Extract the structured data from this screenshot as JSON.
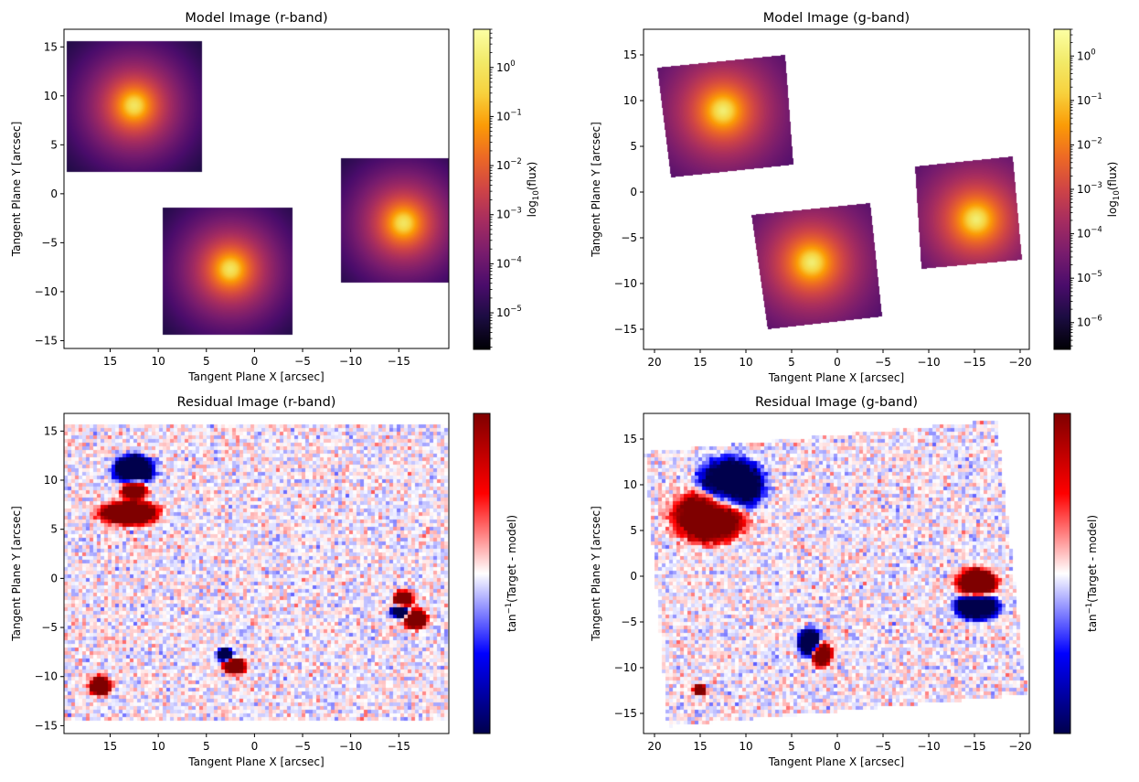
{
  "chart_data": [
    {
      "type": "heatmap",
      "title": "Model Image (r-band)",
      "xlabel": "Tangent Plane X [arcsec]",
      "ylabel": "Tangent Plane Y [arcsec]",
      "xlim": [
        19.8,
        -20.2
      ],
      "ylim": [
        -15.8,
        16.8
      ],
      "x_reversed": true,
      "xticks": [
        15,
        10,
        5,
        0,
        -5,
        -10,
        -15
      ],
      "yticks": [
        -15,
        -10,
        -5,
        0,
        5,
        10,
        15
      ],
      "colormap": "inferno",
      "colorbar": {
        "label": "log10(flux)",
        "scale": "log",
        "range": [
          1.8e-06,
          6.0
        ],
        "ticks": [
          1e-05,
          0.0001,
          0.001,
          0.01,
          0.1,
          1
        ]
      },
      "sources": [
        {
          "center": [
            12.5,
            9.0
          ],
          "panel_x": [
            19.5,
            5.5
          ],
          "panel_y": [
            2.2,
            15.6
          ],
          "rotation_deg": 0
        },
        {
          "center": [
            2.5,
            -7.7
          ],
          "panel_x": [
            9.5,
            -4.0
          ],
          "panel_y": [
            -14.4,
            -1.4
          ],
          "rotation_deg": 0
        },
        {
          "center": [
            -15.5,
            -3.0
          ],
          "panel_x": [
            -9.0,
            -20.2
          ],
          "panel_y": [
            -9.1,
            3.6
          ],
          "rotation_deg": 0
        }
      ]
    },
    {
      "type": "heatmap",
      "title": "Model Image (g-band)",
      "xlabel": "Tangent Plane X [arcsec]",
      "ylabel": "Tangent Plane Y [arcsec]",
      "xlim": [
        21.2,
        -21.0
      ],
      "ylim": [
        -17.2,
        17.8
      ],
      "x_reversed": true,
      "xticks": [
        20,
        15,
        10,
        5,
        0,
        -5,
        -10,
        -15,
        -20
      ],
      "yticks": [
        -15,
        -10,
        -5,
        0,
        5,
        10,
        15
      ],
      "colormap": "inferno",
      "colorbar": {
        "label": "log10(flux)",
        "scale": "log",
        "range": [
          2.5e-07,
          4.0
        ],
        "ticks": [
          1e-06,
          1e-05,
          0.0001,
          0.001,
          0.01,
          0.1,
          1
        ]
      },
      "sources": [
        {
          "center": [
            12.5,
            8.9
          ],
          "corners": [
            [
              19.7,
              13.6
            ],
            [
              5.7,
              15.0
            ],
            [
              4.8,
              3.0
            ],
            [
              18.2,
              1.6
            ]
          ]
        },
        {
          "center": [
            2.8,
            -7.7
          ],
          "corners": [
            [
              9.4,
              -2.5
            ],
            [
              -3.6,
              -1.2
            ],
            [
              -4.9,
              -13.6
            ],
            [
              7.6,
              -15.0
            ]
          ]
        },
        {
          "center": [
            -15.2,
            -3.0
          ],
          "corners": [
            [
              -8.5,
              2.8
            ],
            [
              -19.2,
              3.9
            ],
            [
              -20.2,
              -7.4
            ],
            [
              -9.2,
              -8.4
            ]
          ]
        }
      ]
    },
    {
      "type": "heatmap",
      "title": "Residual Image (r-band)",
      "xlabel": "Tangent Plane X [arcsec]",
      "ylabel": "Tangent Plane Y [arcsec]",
      "xlim": [
        19.8,
        -20.2
      ],
      "ylim": [
        -15.8,
        16.8
      ],
      "x_reversed": true,
      "xticks": [
        15,
        10,
        5,
        0,
        -5,
        -10,
        -15
      ],
      "yticks": [
        -15,
        -10,
        -5,
        0,
        5,
        10,
        15
      ],
      "colormap": "seismic",
      "colorbar": {
        "label": "tan−1(Target - model)"
      },
      "image_extent": {
        "x": [
          19.8,
          -20.2
        ],
        "y": [
          -14.4,
          15.8
        ]
      },
      "features": [
        {
          "x": 12.5,
          "y": 11.0,
          "sign": -1,
          "rx": 2.0,
          "ry": 1.5
        },
        {
          "x": 12.5,
          "y": 9.0,
          "sign": 1,
          "rx": 1.3,
          "ry": 1.0
        },
        {
          "x": 13.0,
          "y": 6.6,
          "sign": 1,
          "rx": 3.0,
          "ry": 1.2
        },
        {
          "x": -15.5,
          "y": -2.2,
          "sign": 1,
          "rx": 1.0,
          "ry": 0.9
        },
        {
          "x": -15.2,
          "y": -3.4,
          "sign": -1,
          "rx": 1.0,
          "ry": 0.7
        },
        {
          "x": -16.8,
          "y": -4.2,
          "sign": 1,
          "rx": 1.2,
          "ry": 1.0
        },
        {
          "x": 3.0,
          "y": -7.8,
          "sign": -1,
          "rx": 0.8,
          "ry": 0.7
        },
        {
          "x": 2.0,
          "y": -9.0,
          "sign": 1,
          "rx": 1.2,
          "ry": 0.8
        },
        {
          "x": 16.0,
          "y": -11.0,
          "sign": 1,
          "rx": 1.1,
          "ry": 1.0
        }
      ]
    },
    {
      "type": "heatmap",
      "title": "Residual Image (g-band)",
      "xlabel": "Tangent Plane X [arcsec]",
      "ylabel": "Tangent Plane Y [arcsec]",
      "xlim": [
        21.2,
        -21.0
      ],
      "ylim": [
        -17.2,
        17.8
      ],
      "x_reversed": true,
      "xticks": [
        20,
        15,
        10,
        5,
        0,
        -5,
        -10,
        -15,
        -20
      ],
      "yticks": [
        -15,
        -10,
        -5,
        0,
        5,
        10,
        15
      ],
      "colormap": "seismic",
      "colorbar": {
        "label": "tan−1(Target - model)"
      },
      "image_corners": [
        [
          21.0,
          13.5
        ],
        [
          -17.5,
          17.0
        ],
        [
          -20.8,
          -13.0
        ],
        [
          18.5,
          -16.5
        ]
      ],
      "features": [
        {
          "x": 11.5,
          "y": 10.0,
          "sign": -1,
          "rx": 3.4,
          "ry": 2.8
        },
        {
          "x": 14.0,
          "y": 6.5,
          "sign": 1,
          "rx": 3.8,
          "ry": 2.8
        },
        {
          "x": -15.3,
          "y": -0.8,
          "sign": 1,
          "rx": 2.1,
          "ry": 1.6
        },
        {
          "x": -15.3,
          "y": -3.4,
          "sign": -1,
          "rx": 2.3,
          "ry": 1.4
        },
        {
          "x": 3.0,
          "y": -7.3,
          "sign": -1,
          "rx": 1.2,
          "ry": 1.5
        },
        {
          "x": 1.7,
          "y": -8.6,
          "sign": 1,
          "rx": 1.1,
          "ry": 1.3
        },
        {
          "x": 15.0,
          "y": -12.5,
          "sign": 1,
          "rx": 0.7,
          "ry": 0.6
        }
      ]
    }
  ]
}
